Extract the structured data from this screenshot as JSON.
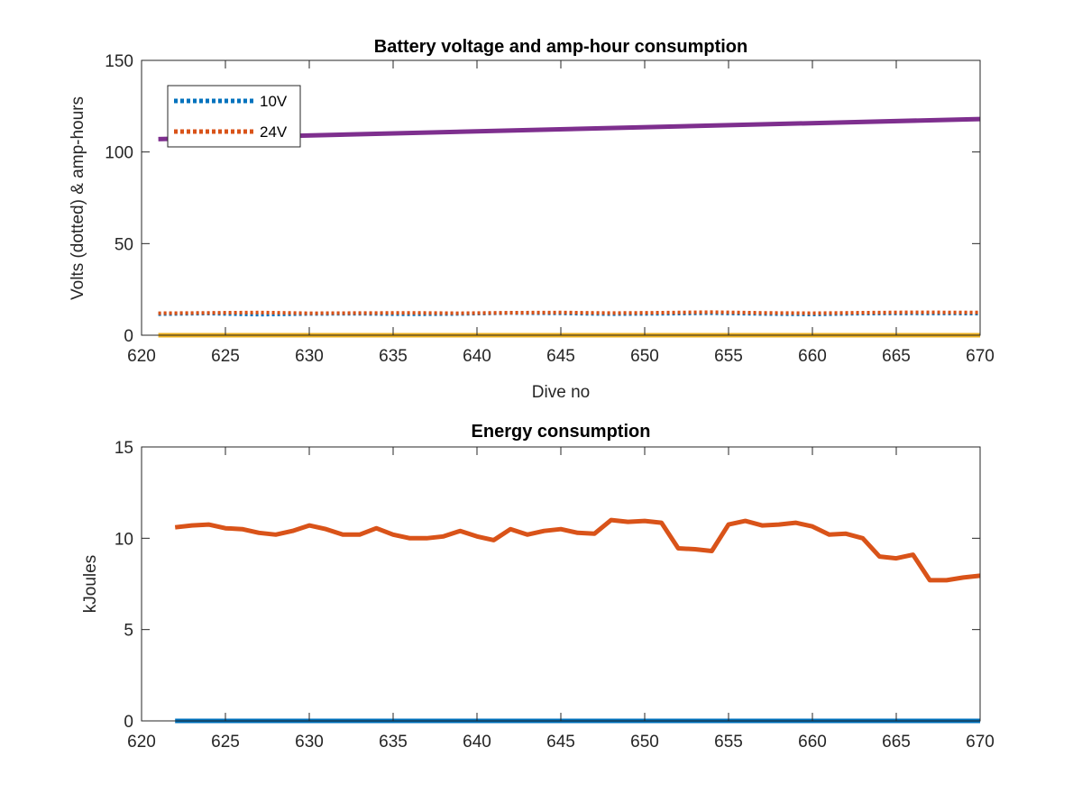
{
  "chart_data": [
    {
      "type": "line",
      "title": "Battery voltage and amp-hour consumption",
      "xlabel": "Dive no",
      "ylabel": "Volts (dotted) & amp-hours",
      "xlim": [
        620,
        670
      ],
      "ylim": [
        0,
        150
      ],
      "xticks": [
        620,
        625,
        630,
        635,
        640,
        645,
        650,
        655,
        660,
        665,
        670
      ],
      "yticks": [
        0,
        50,
        100,
        150
      ],
      "legend_position": "top-left",
      "series": [
        {
          "name": "10V",
          "style": "dotted",
          "color": "#0072BD",
          "x": [
            621,
            624,
            627,
            630,
            633,
            636,
            639,
            642,
            645,
            648,
            651,
            654,
            657,
            660,
            663,
            666,
            670
          ],
          "y": [
            11.5,
            11.8,
            11.2,
            11.6,
            11.7,
            11.4,
            11.6,
            12.1,
            11.9,
            11.5,
            11.7,
            12.0,
            11.6,
            11.3,
            11.8,
            11.9,
            11.8
          ]
        },
        {
          "name": "24V",
          "style": "dotted",
          "color": "#D95319",
          "x": [
            621,
            624,
            627,
            630,
            633,
            636,
            639,
            642,
            645,
            648,
            651,
            654,
            657,
            660,
            663,
            666,
            670
          ],
          "y": [
            12.0,
            12.2,
            12.4,
            12.0,
            12.1,
            12.2,
            12.0,
            12.3,
            12.4,
            12.1,
            12.3,
            12.6,
            12.2,
            12.0,
            12.3,
            12.5,
            12.4
          ]
        },
        {
          "style": "solid",
          "color": "#7E2F8E",
          "x": [
            621,
            670
          ],
          "y": [
            107,
            118
          ]
        },
        {
          "style": "solid",
          "color": "#EDB120",
          "x": [
            621,
            670
          ],
          "y": [
            0,
            0
          ]
        }
      ]
    },
    {
      "type": "line",
      "title": "Energy consumption",
      "xlabel": "",
      "ylabel": "kJoules",
      "xlim": [
        620,
        670
      ],
      "ylim": [
        0,
        15
      ],
      "xticks": [
        620,
        625,
        630,
        635,
        640,
        645,
        650,
        655,
        660,
        665,
        670
      ],
      "yticks": [
        0,
        5,
        10,
        15
      ],
      "series": [
        {
          "style": "solid",
          "color": "#D95319",
          "x": [
            622,
            623,
            624,
            625,
            626,
            627,
            628,
            629,
            630,
            631,
            632,
            633,
            634,
            635,
            636,
            637,
            638,
            639,
            640,
            641,
            642,
            643,
            644,
            645,
            646,
            647,
            648,
            649,
            650,
            651,
            652,
            653,
            654,
            655,
            656,
            657,
            658,
            659,
            660,
            661,
            662,
            663,
            664,
            665,
            666,
            667,
            668,
            669,
            670
          ],
          "y": [
            10.6,
            10.7,
            10.75,
            10.55,
            10.5,
            10.3,
            10.2,
            10.4,
            10.7,
            10.5,
            10.2,
            10.2,
            10.55,
            10.2,
            10.0,
            10.0,
            10.1,
            10.4,
            10.1,
            9.9,
            10.5,
            10.2,
            10.4,
            10.5,
            10.3,
            10.25,
            11.0,
            10.9,
            10.95,
            10.85,
            9.45,
            9.4,
            9.3,
            10.75,
            10.95,
            10.7,
            10.75,
            10.85,
            10.65,
            10.2,
            10.25,
            10.0,
            9.0,
            8.9,
            9.1,
            7.7,
            7.7,
            7.85,
            7.95
          ]
        },
        {
          "style": "solid",
          "color": "#0072BD",
          "x": [
            622,
            670
          ],
          "y": [
            0,
            0
          ]
        }
      ]
    }
  ]
}
